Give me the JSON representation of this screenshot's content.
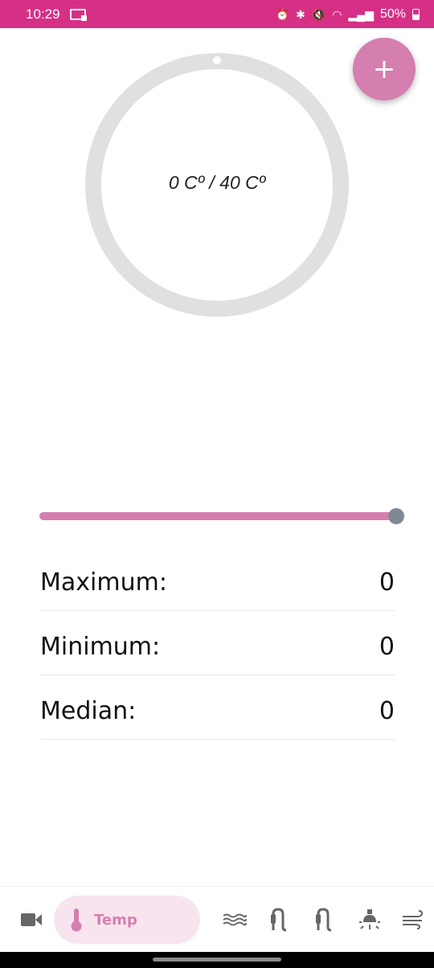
{
  "status_bar": {
    "time": "10:29",
    "battery_text": "50%",
    "icons": [
      "alarm-icon",
      "bluetooth-icon",
      "mute-icon",
      "wifi-icon",
      "signal-icon",
      "battery-icon"
    ]
  },
  "gauge": {
    "label": "0 Cº / 40 Cº",
    "value": 0,
    "max": 40,
    "ring_color": "#e0e0e0"
  },
  "fab": {
    "label": "+",
    "color": "#d57eb0"
  },
  "slider": {
    "value_fraction": 1.0,
    "fill_color": "#d57eb0",
    "thumb_color": "#808894"
  },
  "stats": [
    {
      "label": "Maximum:",
      "value": "0"
    },
    {
      "label": "Minimum:",
      "value": "0"
    },
    {
      "label": "Median:",
      "value": "0"
    }
  ],
  "bottom_nav": {
    "active_label": "Temp",
    "active_color": "#d57eb0",
    "items": [
      "video-camera-icon",
      "thermometer-icon",
      "water-waves-icon",
      "soil-probe-icon",
      "soil-probe-icon-2",
      "light-icon",
      "wind-icon"
    ]
  }
}
